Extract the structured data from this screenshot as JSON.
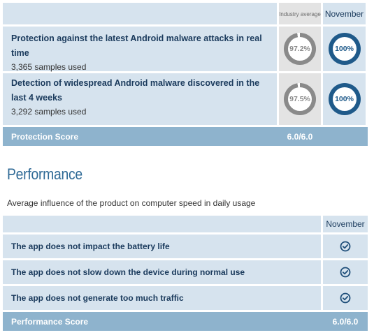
{
  "protection": {
    "header": {
      "industry_average": "Industry average",
      "month": "November"
    },
    "tests": [
      {
        "title": "Protection against the latest Android malware attacks in real time",
        "samples": "3,365 samples used",
        "industry_value": "97.2%",
        "industry_fraction": 0.972,
        "month_value": "100%",
        "month_fraction": 1.0
      },
      {
        "title": "Detection of widespread Android malware discovered in the last 4 weeks",
        "samples": "3,292 samples used",
        "industry_value": "97.5%",
        "industry_fraction": 0.975,
        "month_value": "100%",
        "month_fraction": 1.0
      }
    ],
    "score": {
      "label": "Protection Score",
      "value": "6.0/6.0"
    }
  },
  "performance": {
    "heading": "Performance",
    "description": "Average influence of the product on computer speed in daily usage",
    "header": {
      "month": "November"
    },
    "tests": [
      {
        "title": "The app does not impact the battery life",
        "result_icon": "check-circle-icon"
      },
      {
        "title": "The app does not slow down the device during normal use",
        "result_icon": "check-circle-icon"
      },
      {
        "title": "The app does not generate too much traffic",
        "result_icon": "check-circle-icon"
      }
    ],
    "score": {
      "label": "Performance Score",
      "value": "6.0/6.0"
    }
  },
  "colors": {
    "gauge_industry": "#8a8a8a",
    "gauge_month": "#1f5a8a",
    "gauge_track": "#ffffff",
    "score_bar": "#8eb3cd",
    "heading": "#2f6a96"
  }
}
